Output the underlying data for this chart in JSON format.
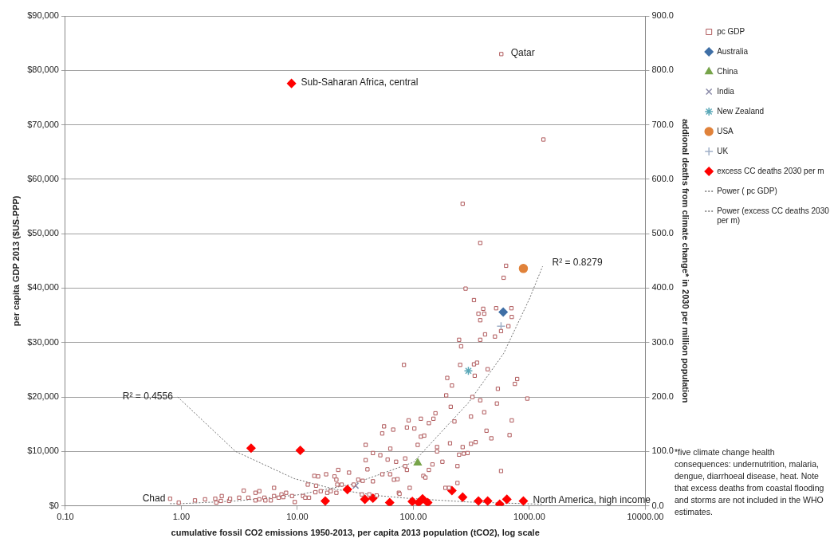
{
  "chart_data": {
    "type": "scatter",
    "xlabel": "cumulative fossil CO2 emissions 1950-2013, per capita 2013 population (tCO2), log scale",
    "ylabel": "per capita GDP 2013 ($US-PPP)",
    "y2label": "addional deaths from climate change* in 2030 per million population",
    "log": "x",
    "grid": "y",
    "legend": "right",
    "xlim": [
      0.1,
      10000
    ],
    "xticks": [
      {
        "value": 0.1,
        "label": "0.10"
      },
      {
        "value": 1,
        "label": "1.00"
      },
      {
        "value": 10,
        "label": "10.00"
      },
      {
        "value": 100,
        "label": "100.00"
      },
      {
        "value": 1000,
        "label": "1000.00"
      },
      {
        "value": 10000,
        "label": "10000.00"
      }
    ],
    "ylim": [
      0,
      90000
    ],
    "yticks": [
      {
        "value": 0,
        "label": "$0"
      },
      {
        "value": 10000,
        "label": "$10,000"
      },
      {
        "value": 20000,
        "label": "$20,000"
      },
      {
        "value": 30000,
        "label": "$30,000"
      },
      {
        "value": 40000,
        "label": "$40,000"
      },
      {
        "value": 50000,
        "label": "$50,000"
      },
      {
        "value": 60000,
        "label": "$60,000"
      },
      {
        "value": 70000,
        "label": "$70,000"
      },
      {
        "value": 80000,
        "label": "$80,000"
      },
      {
        "value": 90000,
        "label": "$90,000"
      }
    ],
    "y2lim": [
      0,
      900
    ],
    "y2ticks": [
      {
        "value": 0,
        "label": "0.0"
      },
      {
        "value": 100,
        "label": "100.0"
      },
      {
        "value": 200,
        "label": "200.0"
      },
      {
        "value": 300,
        "label": "300.0"
      },
      {
        "value": 400,
        "label": "400.0"
      },
      {
        "value": 500,
        "label": "500.0"
      },
      {
        "value": 600,
        "label": "600.0"
      },
      {
        "value": 700,
        "label": "700.0"
      },
      {
        "value": 800,
        "label": "800.0"
      },
      {
        "value": 900,
        "label": "900.0"
      }
    ],
    "series": [
      {
        "name": "pc GDP",
        "marker": "square",
        "color": "#b05a5c",
        "x": [
          0.8,
          0.95,
          1.31,
          1.6,
          1.96,
          2.0,
          2.23,
          2.19,
          2.58,
          2.63,
          3.15,
          3.45,
          3.78,
          4.36,
          4.36,
          4.7,
          4.7,
          5.2,
          5.3,
          5.9,
          6.3,
          6.3,
          6.9,
          7.3,
          7.55,
          8.0,
          9.0,
          9.5,
          11.2,
          11.7,
          12.6,
          12.3,
          14.0,
          15.1,
          14.3,
          14.5,
          15.9,
          17.7,
          18.1,
          19.4,
          20.9,
          21.7,
          22.5,
          22.1,
          24.1,
          21.7,
          27.9,
          30.6,
          33.5,
          36,
          36.6,
          38.8,
          38.8,
          40.2,
          41.7,
          44.8,
          44.8,
          48.2,
          51.9,
          53.9,
          55.9,
          67,
          63.3,
          60,
          54,
          63,
          68,
          73,
          71,
          75,
          83,
          266,
          377,
          630,
          600,
          282,
          333,
          400,
          517,
          700,
          364,
          408,
          377,
          705,
          570,
          660,
          415,
          505,
          248,
          377,
          258,
          253,
          333,
          354,
          338,
          437,
          785,
          750,
          196,
          215,
          535,
          960,
          192,
          323,
          377,
          210,
          525,
          155,
          408,
          149,
          116,
          91,
          136,
          226,
          314,
          705,
          88,
          102,
          427,
          116,
          124,
          470,
          675,
          109,
          207,
          314,
          344,
          266,
          160,
          160,
          248,
          272,
          293,
          85,
          178,
          85,
          146,
          240,
          136,
          88,
          570,
          122,
          127,
          240,
          93,
          189,
          203,
          76,
          573,
          1322
        ],
        "values": [
          1300,
          600,
          1000,
          1200,
          1300,
          600,
          1800,
          900,
          900,
          1300,
          1500,
          2800,
          1500,
          1000,
          2400,
          2700,
          1200,
          1500,
          1000,
          1000,
          3300,
          1800,
          1500,
          2100,
          1600,
          2400,
          1800,
          700,
          1800,
          1500,
          1500,
          3900,
          5500,
          5400,
          2500,
          3700,
          2700,
          5800,
          2400,
          2700,
          5400,
          4800,
          6600,
          3900,
          3900,
          2400,
          6100,
          3900,
          4800,
          2100,
          4600,
          11200,
          8400,
          6700,
          2100,
          9700,
          4500,
          1900,
          9300,
          13300,
          14600,
          14000,
          10500,
          8500,
          5800,
          5800,
          4800,
          4900,
          8100,
          2400,
          25900,
          55500,
          48300,
          44100,
          41900,
          39900,
          37800,
          36200,
          36300,
          36300,
          35300,
          35300,
          34100,
          34700,
          32100,
          33000,
          31500,
          31100,
          30500,
          30500,
          29300,
          25900,
          26000,
          26300,
          23900,
          25100,
          23300,
          22400,
          23500,
          22100,
          21500,
          19700,
          20300,
          20000,
          19400,
          18200,
          18800,
          17000,
          17200,
          16000,
          16000,
          15700,
          15200,
          15500,
          16400,
          15700,
          14400,
          14200,
          13800,
          12700,
          12900,
          12400,
          13000,
          11200,
          11500,
          11400,
          11700,
          10800,
          10800,
          10000,
          9400,
          9600,
          9700,
          8700,
          8100,
          7300,
          7600,
          7300,
          6600,
          6600,
          6400,
          5500,
          5200,
          4200,
          3300,
          3300,
          3300,
          2200,
          83000,
          67300
        ]
      },
      {
        "name": "Australia",
        "marker": "diamond",
        "color": "#3f6fa6",
        "x": [
          595
        ],
        "values": [
          35600
        ]
      },
      {
        "name": "China",
        "marker": "triangle",
        "color": "#77a44a",
        "x": [
          109
        ],
        "values": [
          7900
        ]
      },
      {
        "name": "India",
        "marker": "x",
        "color": "#8a8aa8",
        "x": [
          31.8
        ],
        "values": [
          3700
        ]
      },
      {
        "name": "New Zealand",
        "color": "#5aa8b8",
        "x": [
          298
        ],
        "values": [
          24800
        ]
      },
      {
        "name": "USA",
        "marker": "circle",
        "color": "#e0823a",
        "x": [
          888
        ],
        "values": [
          43600
        ]
      },
      {
        "name": "UK",
        "marker": "cross",
        "color": "#a0b0c8",
        "x": [
          570
        ],
        "values": [
          33000
        ]
      },
      {
        "name": "excess CC deaths 2030 per m",
        "marker": "diamond",
        "color": "#ff0000",
        "axis": "y2",
        "x": [
          3.99,
          8.9,
          10.6,
          17.4,
          27,
          38.2,
          44.8,
          62.5,
          98,
          111,
          120,
          133,
          215,
          266,
          364,
          437,
          555,
          640,
          888
        ],
        "values": [
          106,
          776,
          102,
          9,
          30,
          12,
          14,
          6,
          8,
          6,
          13,
          6,
          28,
          16,
          9,
          9,
          3,
          12,
          9
        ]
      },
      {
        "name": "Power ( pc GDP)",
        "type": "line",
        "marker": "none",
        "line_style": "dotted",
        "color": "#707070",
        "x": [
          0.8,
          1,
          3,
          10,
          30,
          100,
          300,
          600,
          1000,
          1300
        ],
        "values": [
          400,
          400,
          900,
          2000,
          4000,
          8000,
          19000,
          28000,
          38000,
          44000
        ]
      },
      {
        "name": "Power (excess CC deaths 2030 per m)",
        "type": "line",
        "marker": "none",
        "line_style": "dotted",
        "color": "#707070",
        "axis": "y2",
        "x": [
          0.93,
          2.93,
          9.4,
          20.5,
          48,
          88,
          300,
          1300
        ],
        "values": [
          200,
          100,
          50,
          31,
          19,
          14,
          7,
          3
        ]
      }
    ],
    "annotations": [
      {
        "text": "Qatar",
        "x": 573,
        "y": 83000
      },
      {
        "text": "Sub-Saharan Africa, central",
        "x": 8.9,
        "y": 77600
      },
      {
        "text": "Chad",
        "x": 0.8,
        "y": 1300
      },
      {
        "text": "North America, high income",
        "x": 888,
        "y": 900
      },
      {
        "text": "R² = 0.4556",
        "x": 0.93,
        "y": 20000
      },
      {
        "text": "R² = 0.8279",
        "x": 1300,
        "y": 44500
      },
      "*five climate change health consequences: undernutrition, malaria, dengue, diarrhoeal disease, heat. Note that excess deaths from coastal flooding and storms are not included in the WHO estimates."
    ]
  }
}
